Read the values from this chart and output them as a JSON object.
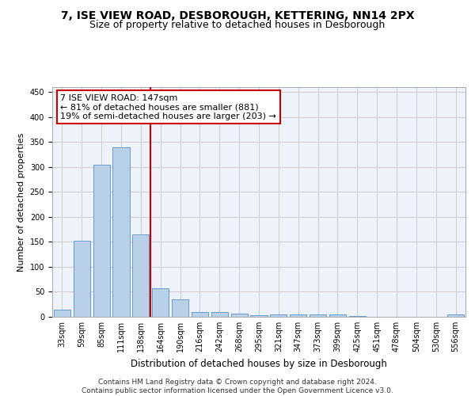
{
  "title": "7, ISE VIEW ROAD, DESBOROUGH, KETTERING, NN14 2PX",
  "subtitle": "Size of property relative to detached houses in Desborough",
  "xlabel": "Distribution of detached houses by size in Desborough",
  "ylabel": "Number of detached properties",
  "categories": [
    "33sqm",
    "59sqm",
    "85sqm",
    "111sqm",
    "138sqm",
    "164sqm",
    "190sqm",
    "216sqm",
    "242sqm",
    "268sqm",
    "295sqm",
    "321sqm",
    "347sqm",
    "373sqm",
    "399sqm",
    "425sqm",
    "451sqm",
    "478sqm",
    "504sqm",
    "530sqm",
    "556sqm"
  ],
  "values": [
    15,
    153,
    305,
    340,
    165,
    57,
    35,
    10,
    9,
    6,
    3,
    5,
    4,
    5,
    5,
    2,
    0,
    0,
    0,
    0,
    5
  ],
  "bar_color": "#b8d0e8",
  "bar_edgecolor": "#6699cc",
  "vline_color": "#cc0000",
  "annotation_text": "7 ISE VIEW ROAD: 147sqm\n← 81% of detached houses are smaller (881)\n19% of semi-detached houses are larger (203) →",
  "annotation_box_color": "#ffffff",
  "annotation_box_edgecolor": "#cc0000",
  "ylim": [
    0,
    460
  ],
  "yticks": [
    0,
    50,
    100,
    150,
    200,
    250,
    300,
    350,
    400,
    450
  ],
  "grid_color": "#cccccc",
  "background_color": "#eef2fa",
  "footer_text": "Contains HM Land Registry data © Crown copyright and database right 2024.\nContains public sector information licensed under the Open Government Licence v3.0.",
  "title_fontsize": 10,
  "subtitle_fontsize": 9,
  "xlabel_fontsize": 8.5,
  "ylabel_fontsize": 8,
  "tick_fontsize": 7,
  "annotation_fontsize": 8,
  "footer_fontsize": 6.5,
  "vline_pos": 4.5
}
